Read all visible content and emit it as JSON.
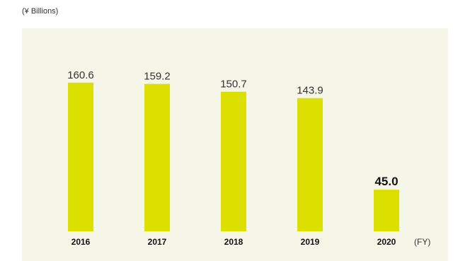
{
  "chart_data": {
    "type": "bar",
    "unit_label": "(¥ Billions)",
    "x_suffix": "(FY)",
    "categories": [
      "2016",
      "2017",
      "2018",
      "2019",
      "2020"
    ],
    "series": [
      {
        "values": [
          160.6,
          159.2,
          150.7,
          143.9,
          45.0
        ],
        "labels": [
          "160.6",
          "159.2",
          "150.7",
          "143.9",
          "45.0"
        ]
      }
    ],
    "highlight_index": 4,
    "ylim": [
      0,
      200
    ],
    "grid": false,
    "colors": {
      "bar": "#dce000",
      "plot_background": "#f5f6e8"
    }
  }
}
